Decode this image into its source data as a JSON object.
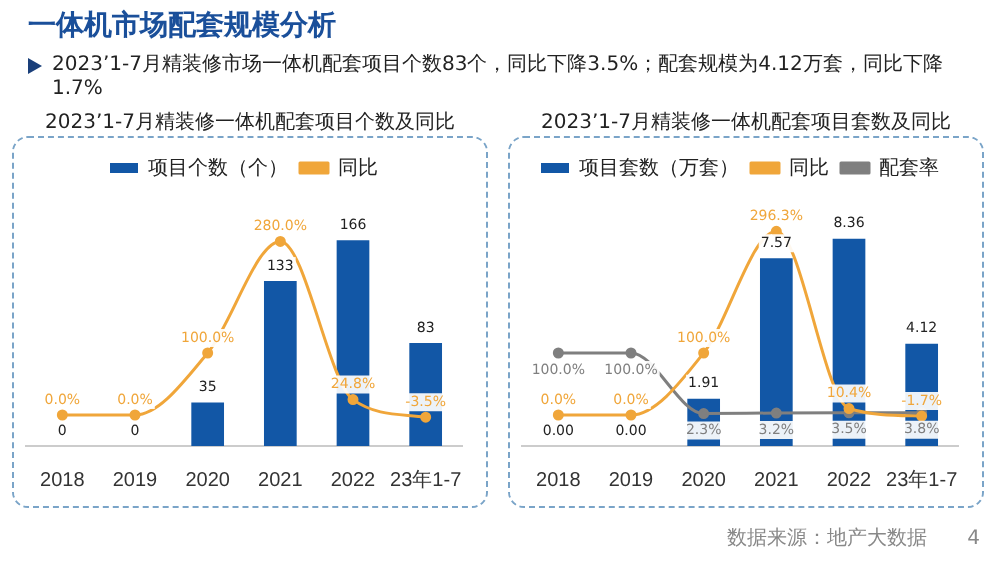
{
  "chart_data": [
    {
      "type": "bar",
      "title": "2023’1-7月精装修一体机配套项目个数及同比",
      "categories": [
        "2018",
        "2019",
        "2020",
        "2021",
        "2022",
        "23年1-7"
      ],
      "series": [
        {
          "name": "项目个数（个）",
          "color": "#1257a6",
          "values": [
            0,
            0,
            35,
            133,
            166,
            83
          ],
          "value_labels": [
            "0",
            "0",
            "35",
            "133",
            "166",
            "83"
          ]
        },
        {
          "name": "同比",
          "type": "line",
          "axis": "y2",
          "color": "#f0a63a",
          "values": [
            0,
            0,
            100,
            280,
            24.8,
            -3.5
          ],
          "value_labels": [
            "0.0%",
            "0.0%",
            "100.0%",
            "280.0%",
            "24.8%",
            "-3.5%"
          ]
        }
      ],
      "annotations": [
        "一体机市场配套规模分析",
        "2023’1-7月精装修市场一体机配套项目个数83个，同比下降3.5%；配套规模为4.12万套，同比下降1.7%"
      ],
      "legend": "top",
      "grid": false,
      "tick_labels": "x",
      "marker": "circle",
      "line_style": "solid"
    },
    {
      "type": "bar",
      "title": "2023’1-7月精装修一体机配套项目套数及同比",
      "categories": [
        "2018",
        "2019",
        "2020",
        "2021",
        "2022",
        "23年1-7"
      ],
      "series": [
        {
          "name": "项目套数（万套）",
          "color": "#1257a6",
          "values": [
            0,
            0,
            1.91,
            7.57,
            8.36,
            4.12
          ],
          "value_labels": [
            "0.00",
            "0.00",
            "1.91",
            "7.57",
            "8.36",
            "4.12"
          ]
        },
        {
          "name": "同比",
          "type": "line",
          "axis": "y2",
          "color": "#f0a63a",
          "values": [
            0,
            0,
            100,
            296.3,
            10.4,
            -1.7
          ],
          "value_labels": [
            "0.0%",
            "0.0%",
            "100.0%",
            "296.3%",
            "10.4%",
            "-1.7%"
          ]
        },
        {
          "name": "配套率",
          "type": "line",
          "axis": "y2",
          "color": "#7f7f7f",
          "values": [
            100,
            100,
            2.3,
            3.2,
            3.5,
            3.8
          ],
          "value_labels": [
            "100.0%",
            "100.0%",
            "2.3%",
            "3.2%",
            "3.5%",
            "3.8%"
          ]
        }
      ],
      "annotations": [
        "数据来源：地产大数据",
        "4"
      ],
      "legend": "top",
      "grid": false,
      "tick_labels": "x",
      "marker": "circle",
      "line_style": "solid"
    }
  ]
}
